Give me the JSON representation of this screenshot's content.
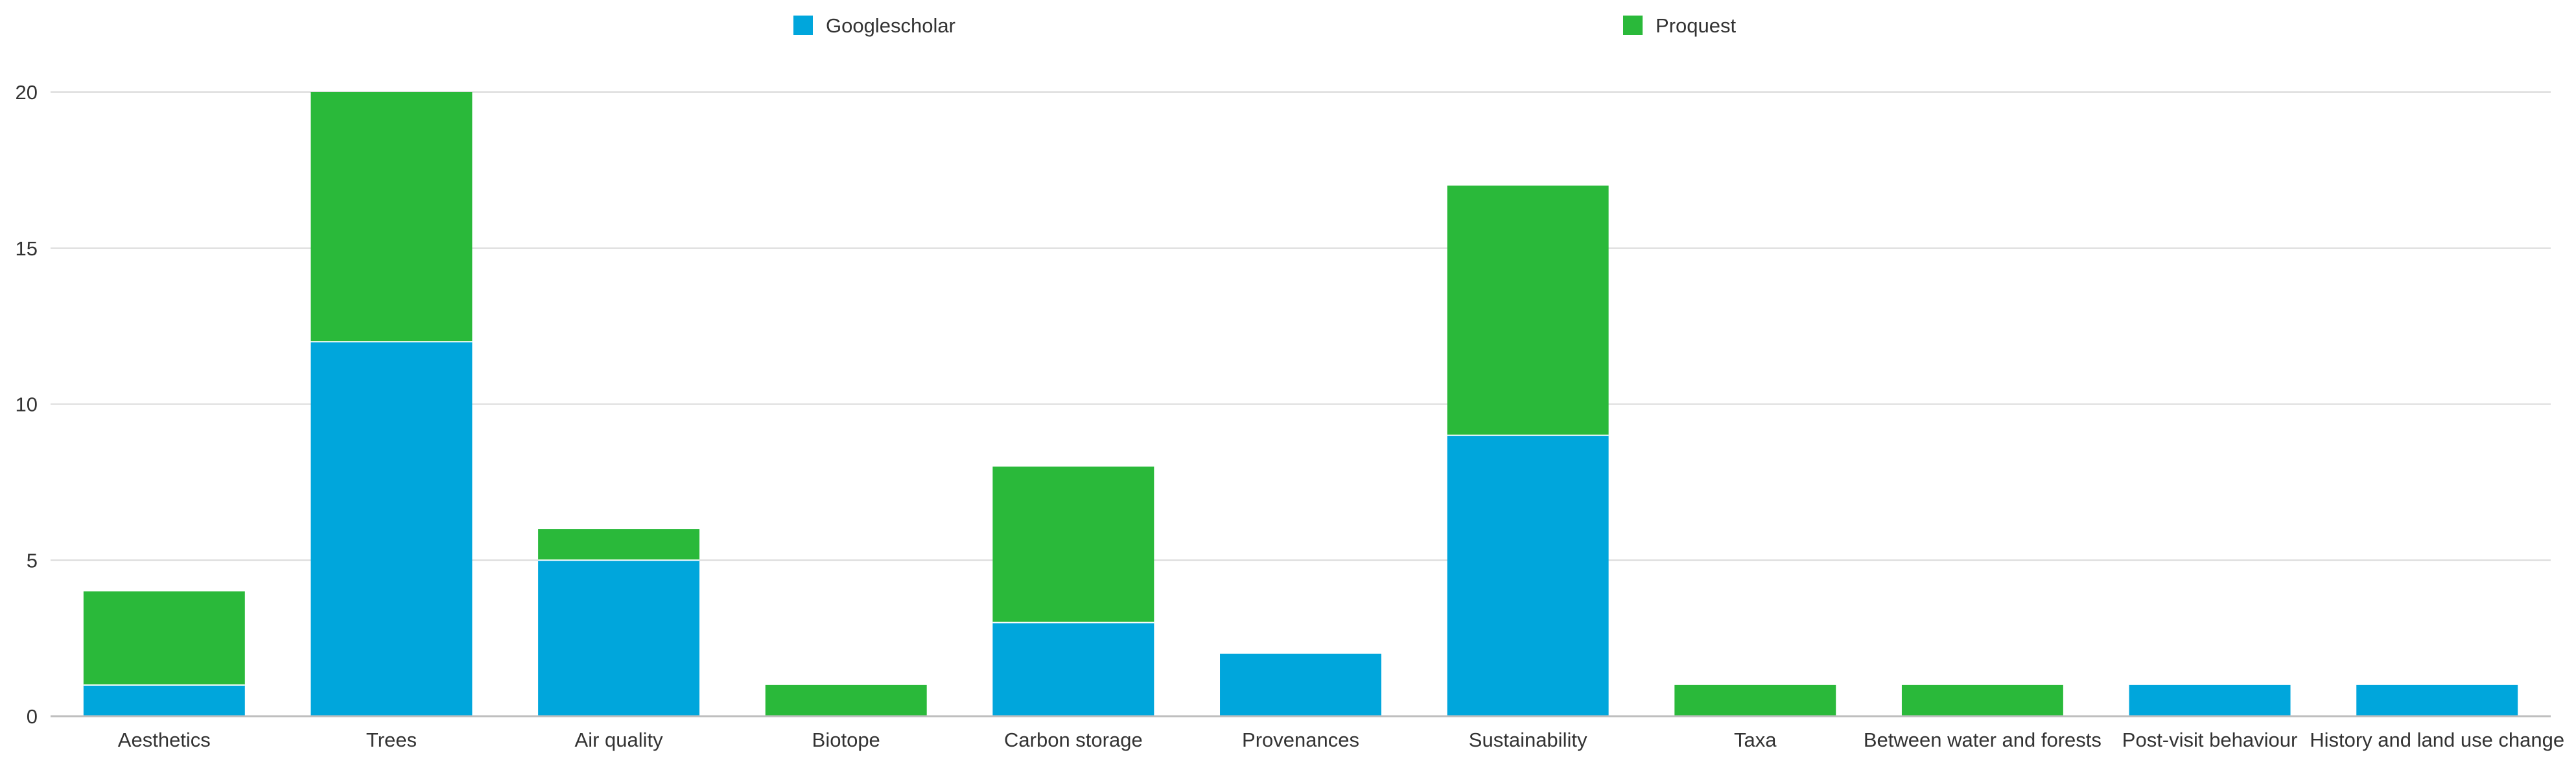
{
  "chart_data": {
    "type": "bar",
    "stacked": true,
    "title": "",
    "xlabel": "",
    "ylabel": "",
    "ylim": [
      0,
      20
    ],
    "yticks": [
      0,
      5,
      10,
      15,
      20
    ],
    "grid": true,
    "legend_position": "top",
    "categories": [
      "Aesthetics",
      "Trees",
      "Air quality",
      "Biotope",
      "Carbon storage",
      "Provenances",
      "Sustainability",
      "Taxa",
      "Between water and forests",
      "Post-visit behaviour",
      "History and land use change"
    ],
    "series": [
      {
        "name": "Googlescholar",
        "color": "#00a6dc",
        "values": [
          1,
          12,
          5,
          0,
          3,
          2,
          9,
          0,
          0,
          1,
          1
        ]
      },
      {
        "name": "Proquest",
        "color": "#2ab93a",
        "values": [
          3,
          8,
          1,
          1,
          5,
          0,
          8,
          1,
          1,
          0,
          0
        ]
      }
    ]
  }
}
